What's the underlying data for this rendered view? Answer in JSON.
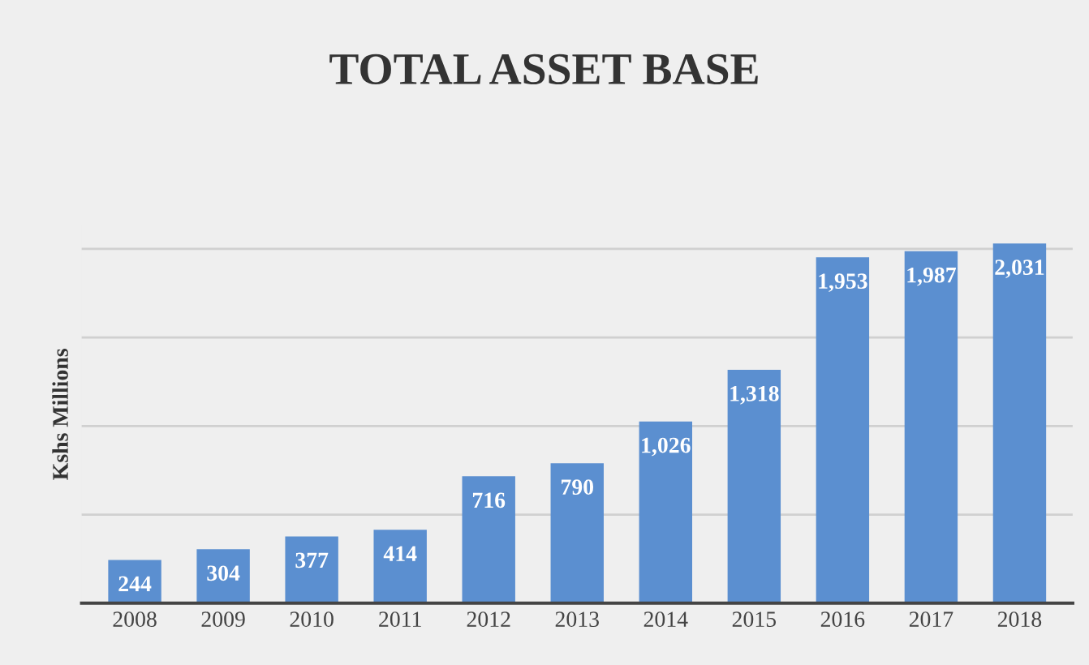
{
  "chart_data": {
    "type": "bar",
    "title": "TOTAL ASSET BASE",
    "ylabel": "Kshs Millions",
    "categories": [
      "2008",
      "2009",
      "2010",
      "2011",
      "2012",
      "2013",
      "2014",
      "2015",
      "2016",
      "2017",
      "2018"
    ],
    "values": [
      244,
      304,
      377,
      414,
      716,
      790,
      1026,
      1318,
      1953,
      1987,
      2031
    ],
    "value_labels": [
      "244",
      "304",
      "377",
      "414",
      "716",
      "790",
      "1,026",
      "1,318",
      "1,953",
      "1,987",
      "2,031"
    ],
    "color": "#5b8fd0",
    "yticks": [
      {
        "value": 0,
        "label": null
      },
      {
        "value": 500,
        "label": null
      },
      {
        "value": 1000,
        "label": null
      },
      {
        "value": 1500,
        "label": null
      },
      {
        "value": 2000,
        "label": null
      }
    ],
    "grid": "y",
    "tick_labels": "x",
    "legend": false
  }
}
